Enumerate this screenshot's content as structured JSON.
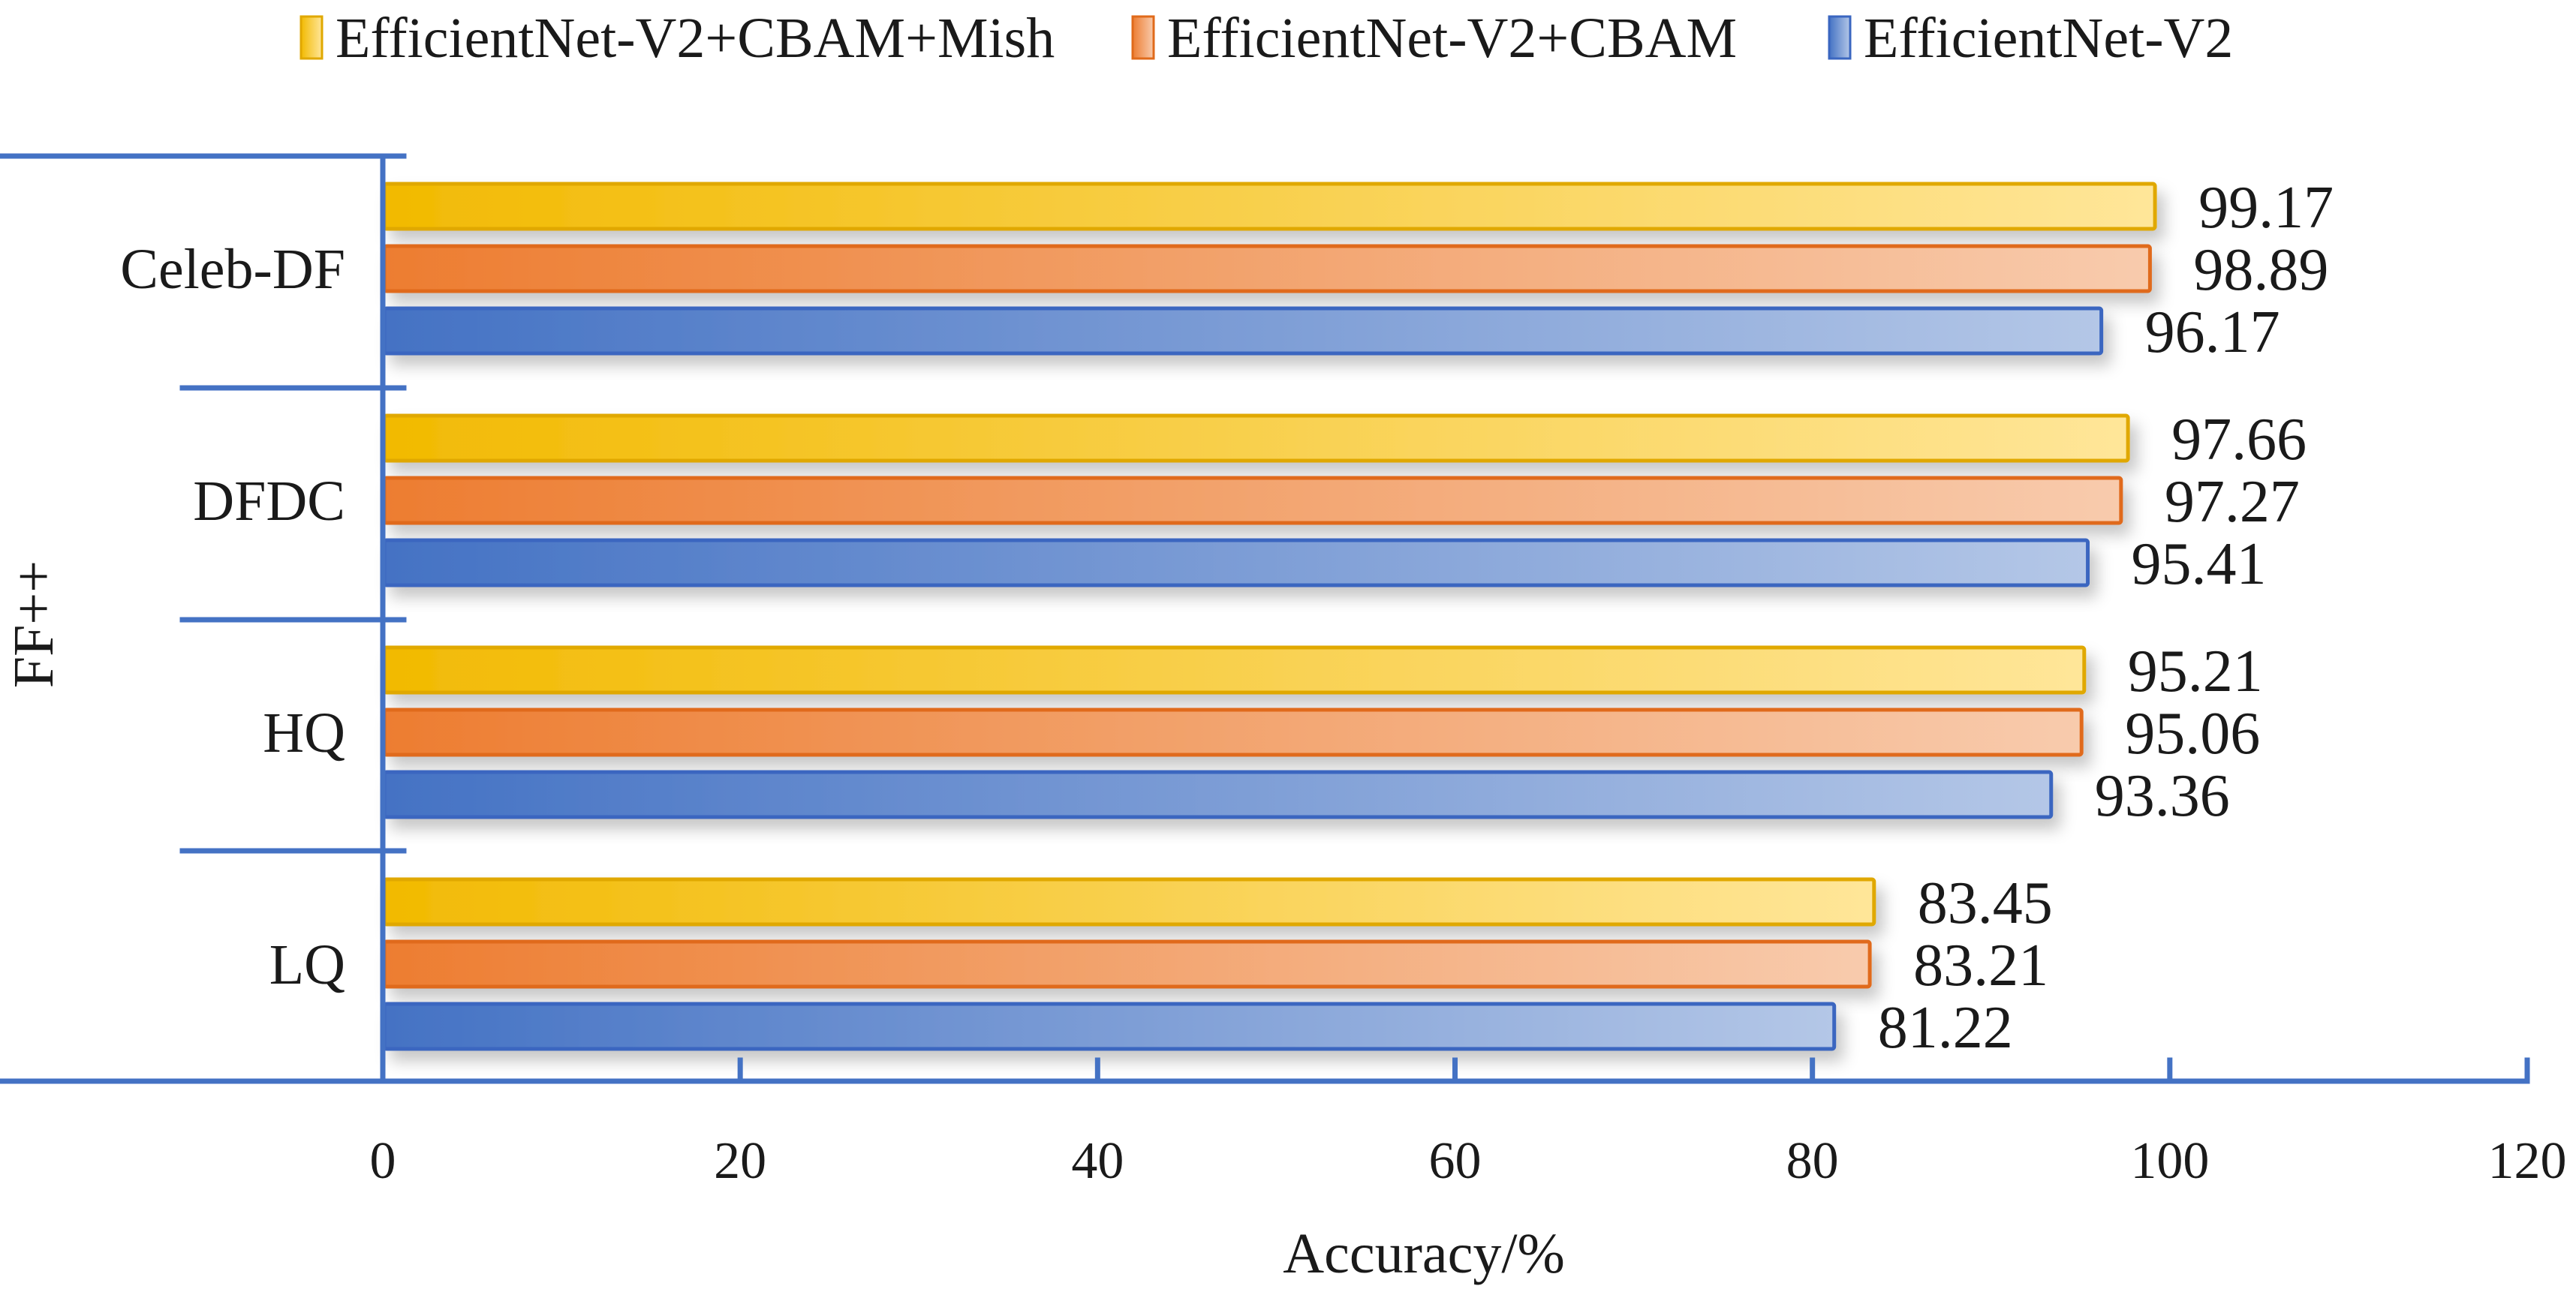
{
  "chart_data": {
    "type": "bar",
    "orientation": "horizontal",
    "title": "",
    "xlabel": "Accuracy/%",
    "ylabel": "FF++",
    "xlim": [
      0,
      120
    ],
    "xticks": [
      0,
      20,
      40,
      60,
      80,
      100,
      120
    ],
    "grid": false,
    "legend_position": "top",
    "categories": [
      "Celeb-DF",
      "DFDC",
      "HQ",
      "LQ"
    ],
    "category_group_label": {
      "label": "FF++",
      "spans": [
        "DFDC",
        "HQ",
        "LQ"
      ]
    },
    "series": [
      {
        "name": "EfficientNet-V2+CBAM+Mish",
        "color": "#F2BA02",
        "light_color": "#FFE699",
        "edge_color": "#E0A800",
        "values": [
          99.17,
          97.66,
          95.21,
          83.45
        ]
      },
      {
        "name": "EfficientNet-V2+CBAM",
        "color": "#ED7D31",
        "light_color": "#F8CBAD",
        "edge_color": "#E06A1A",
        "values": [
          98.89,
          97.27,
          95.06,
          83.21
        ]
      },
      {
        "name": "EfficientNet-V2",
        "color": "#4472C4",
        "light_color": "#B4C7E7",
        "edge_color": "#3A66C0",
        "values": [
          96.17,
          95.41,
          93.36,
          81.22
        ]
      }
    ],
    "axis_color": "#4472C4"
  }
}
